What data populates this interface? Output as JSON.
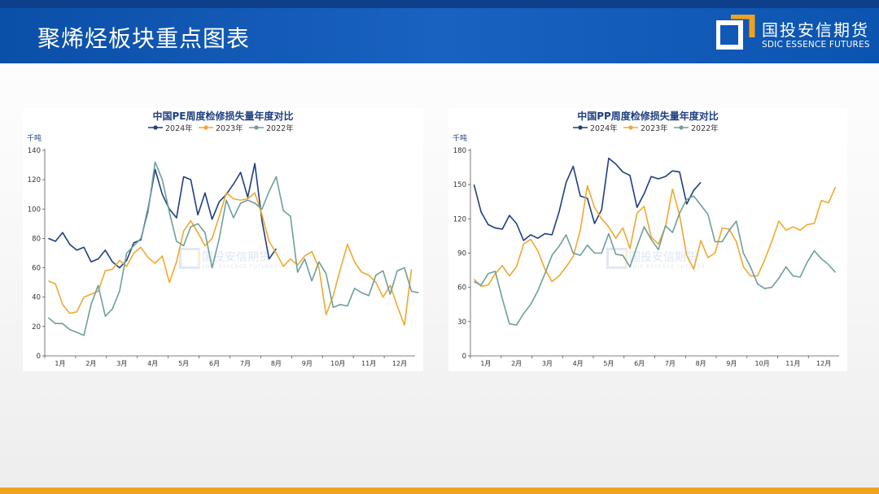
{
  "header": {
    "title": "聚烯烃板块重点图表",
    "logo_cn": "国投安信期货",
    "logo_en": "SDIC ESSENCE FUTURES"
  },
  "watermark": {
    "cn": "国投安信期货",
    "en": "SDIC ESSENCE FUTURES"
  },
  "colors": {
    "header_blue": "#1a62c0",
    "accent_orange": "#f0a21e",
    "series_2024": "#1f3f80",
    "series_2023": "#f0a830",
    "series_2022": "#6e9f9c",
    "title_text": "#1f3f80"
  },
  "chart_data": [
    {
      "type": "line",
      "title": "中国PE周度检修损失量年度对比",
      "unit": "千吨",
      "ylim": [
        0,
        140
      ],
      "yticks": [
        0,
        20,
        40,
        60,
        80,
        100,
        120,
        140
      ],
      "xlabels": [
        "1月",
        "2月",
        "3月",
        "4月",
        "5月",
        "6月",
        "7月",
        "8月",
        "9月",
        "10月",
        "11月",
        "12月"
      ],
      "legend_position": "top",
      "series": [
        {
          "name": "2024年",
          "color": "#1f3f80",
          "values": [
            80,
            78,
            84,
            76,
            72,
            74,
            64,
            66,
            72,
            64,
            60,
            65,
            77,
            79,
            100,
            127,
            110,
            100,
            94,
            122,
            120,
            96,
            111,
            93,
            105,
            110,
            117,
            125,
            108,
            131,
            92,
            66,
            73
          ]
        },
        {
          "name": "2023年",
          "color": "#f0a830",
          "values": [
            51,
            49,
            35,
            29,
            30,
            40,
            42,
            44,
            58,
            59,
            65,
            61,
            70,
            74,
            67,
            63,
            68,
            50,
            64,
            85,
            92,
            84,
            75,
            80,
            95,
            111,
            107,
            106,
            107,
            111,
            96,
            78,
            70,
            61,
            66,
            62,
            68,
            71,
            60,
            28,
            41,
            59,
            76,
            64,
            57,
            55,
            50,
            40,
            48,
            34,
            21,
            59
          ]
        },
        {
          "name": "2022年",
          "color": "#6e9f9c",
          "values": [
            26,
            22,
            22,
            18,
            16,
            14,
            35,
            48,
            27,
            32,
            44,
            70,
            75,
            80,
            98,
            132,
            120,
            98,
            78,
            75,
            88,
            90,
            84,
            60,
            80,
            106,
            94,
            104,
            106,
            104,
            100,
            112,
            122,
            99,
            95,
            57,
            66,
            51,
            64,
            56,
            33,
            35,
            34,
            46,
            43,
            41,
            55,
            58,
            42,
            58,
            60,
            44,
            43
          ]
        }
      ]
    },
    {
      "type": "line",
      "title": "中国PP周度检修损失量年度对比",
      "unit": "千吨",
      "ylim": [
        0,
        180
      ],
      "yticks": [
        0,
        30,
        60,
        90,
        120,
        150,
        180
      ],
      "xlabels": [
        "1月",
        "2月",
        "3月",
        "4月",
        "5月",
        "6月",
        "7月",
        "8月",
        "9月",
        "10月",
        "11月",
        "12月"
      ],
      "legend_position": "top",
      "series": [
        {
          "name": "2024年",
          "color": "#1f3f80",
          "values": [
            150,
            126,
            115,
            112,
            111,
            123,
            116,
            101,
            106,
            103,
            107,
            106,
            126,
            152,
            166,
            140,
            138,
            116,
            128,
            173,
            168,
            161,
            158,
            130,
            142,
            157,
            155,
            157,
            162,
            161,
            133,
            145,
            152
          ]
        },
        {
          "name": "2023年",
          "color": "#f0a830",
          "values": [
            67,
            61,
            62,
            72,
            79,
            70,
            78,
            98,
            102,
            92,
            76,
            65,
            70,
            78,
            87,
            110,
            149,
            130,
            120,
            113,
            103,
            112,
            94,
            125,
            131,
            104,
            98,
            113,
            146,
            123,
            88,
            76,
            101,
            86,
            90,
            112,
            111,
            100,
            78,
            70,
            70,
            84,
            100,
            118,
            110,
            113,
            110,
            115,
            116,
            136,
            134,
            148
          ]
        },
        {
          "name": "2022年",
          "color": "#6e9f9c",
          "values": [
            65,
            62,
            72,
            74,
            50,
            28,
            27,
            37,
            45,
            57,
            72,
            88,
            96,
            106,
            90,
            88,
            97,
            90,
            90,
            107,
            89,
            88,
            78,
            96,
            113,
            102,
            93,
            114,
            108,
            125,
            137,
            140,
            132,
            124,
            100,
            100,
            110,
            118,
            90,
            78,
            63,
            59,
            60,
            68,
            78,
            70,
            69,
            82,
            92,
            85,
            80,
            73
          ]
        }
      ]
    }
  ]
}
